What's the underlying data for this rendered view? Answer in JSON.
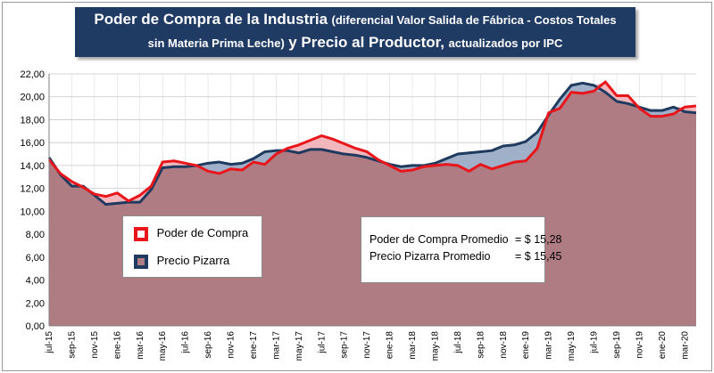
{
  "title": {
    "part1": "Poder de Compra de la Industria",
    "part2": "(diferencial Valor Salida de Fábrica - Costos Totales",
    "part3": "sin Materia Prima Leche)",
    "part4": "y Precio al Productor,",
    "part5": "actualizados por IPC"
  },
  "legend": {
    "poder": "Poder de Compra",
    "pizarra": "Precio Pizarra"
  },
  "stats": {
    "poder_label": "Poder de Compra Promedio",
    "poder_value": "= $ 15,28",
    "pizarra_label": "Precio Pizarra Promedio",
    "pizarra_value": "= $ 15,45"
  },
  "colors": {
    "title_bg": "#1f3a63",
    "poder": "#e8161b",
    "pizarra": "#1f3a5f",
    "area": "#b07c84",
    "area_pink": "#f2b7bd",
    "area_blue": "#9fb0c8"
  },
  "chart_data": {
    "type": "area",
    "title": "Poder de Compra de la Industria (diferencial Valor Salida de Fábrica - Costos Totales sin Materia Prima Leche) y Precio al Productor, actualizados por IPC",
    "xlabel": "",
    "ylabel": "",
    "ylim": [
      0,
      22
    ],
    "yticks": [
      "0,00",
      "2,00",
      "4,00",
      "6,00",
      "8,00",
      "10,00",
      "12,00",
      "14,00",
      "16,00",
      "18,00",
      "20,00",
      "22,00"
    ],
    "x_tick_labels": [
      "jul-15",
      "sep-15",
      "nov-15",
      "ene-16",
      "mar-16",
      "may-16",
      "jul-16",
      "sep-16",
      "nov-16",
      "ene-17",
      "mar-17",
      "may-17",
      "jul-17",
      "sep-17",
      "nov-17",
      "ene-18",
      "mar-18",
      "may-18",
      "jul-18",
      "sep-18",
      "nov-18",
      "ene-19",
      "mar-19",
      "may-19",
      "jul-19",
      "sep-19",
      "nov-19",
      "ene-20",
      "mar-20"
    ],
    "x_start": "jul-15",
    "x_end": "abr-20",
    "grid": true,
    "legend_position": "center-left",
    "series": [
      {
        "name": "Poder de Compra",
        "values": [
          14.5,
          13.3,
          12.6,
          12.1,
          11.5,
          11.3,
          11.6,
          10.9,
          11.4,
          12.2,
          14.3,
          14.4,
          14.2,
          14.0,
          13.5,
          13.3,
          13.7,
          13.6,
          14.3,
          14.1,
          15.0,
          15.5,
          15.8,
          16.2,
          16.6,
          16.3,
          15.9,
          15.5,
          15.2,
          14.5,
          14.0,
          13.5,
          13.6,
          13.9,
          14.0,
          14.1,
          14.0,
          13.5,
          14.1,
          13.7,
          14.0,
          14.3,
          14.4,
          15.5,
          18.6,
          19.0,
          20.4,
          20.3,
          20.5,
          21.3,
          20.1,
          20.1,
          19.0,
          18.3,
          18.3,
          18.5,
          19.1,
          19.2
        ]
      },
      {
        "name": "Precio Pizarra",
        "values": [
          14.7,
          13.2,
          12.2,
          12.2,
          11.4,
          10.6,
          10.7,
          10.8,
          10.8,
          11.9,
          13.8,
          13.9,
          13.9,
          14.0,
          14.2,
          14.3,
          14.1,
          14.2,
          14.6,
          15.2,
          15.3,
          15.3,
          15.1,
          15.4,
          15.4,
          15.2,
          15.0,
          14.9,
          14.7,
          14.4,
          14.1,
          13.9,
          14.0,
          14.0,
          14.2,
          14.6,
          15.0,
          15.1,
          15.2,
          15.3,
          15.7,
          15.8,
          16.1,
          16.9,
          18.4,
          19.8,
          21.0,
          21.2,
          21.0,
          20.4,
          19.6,
          19.4,
          19.1,
          18.8,
          18.8,
          19.1,
          18.7,
          18.6
        ]
      }
    ]
  }
}
